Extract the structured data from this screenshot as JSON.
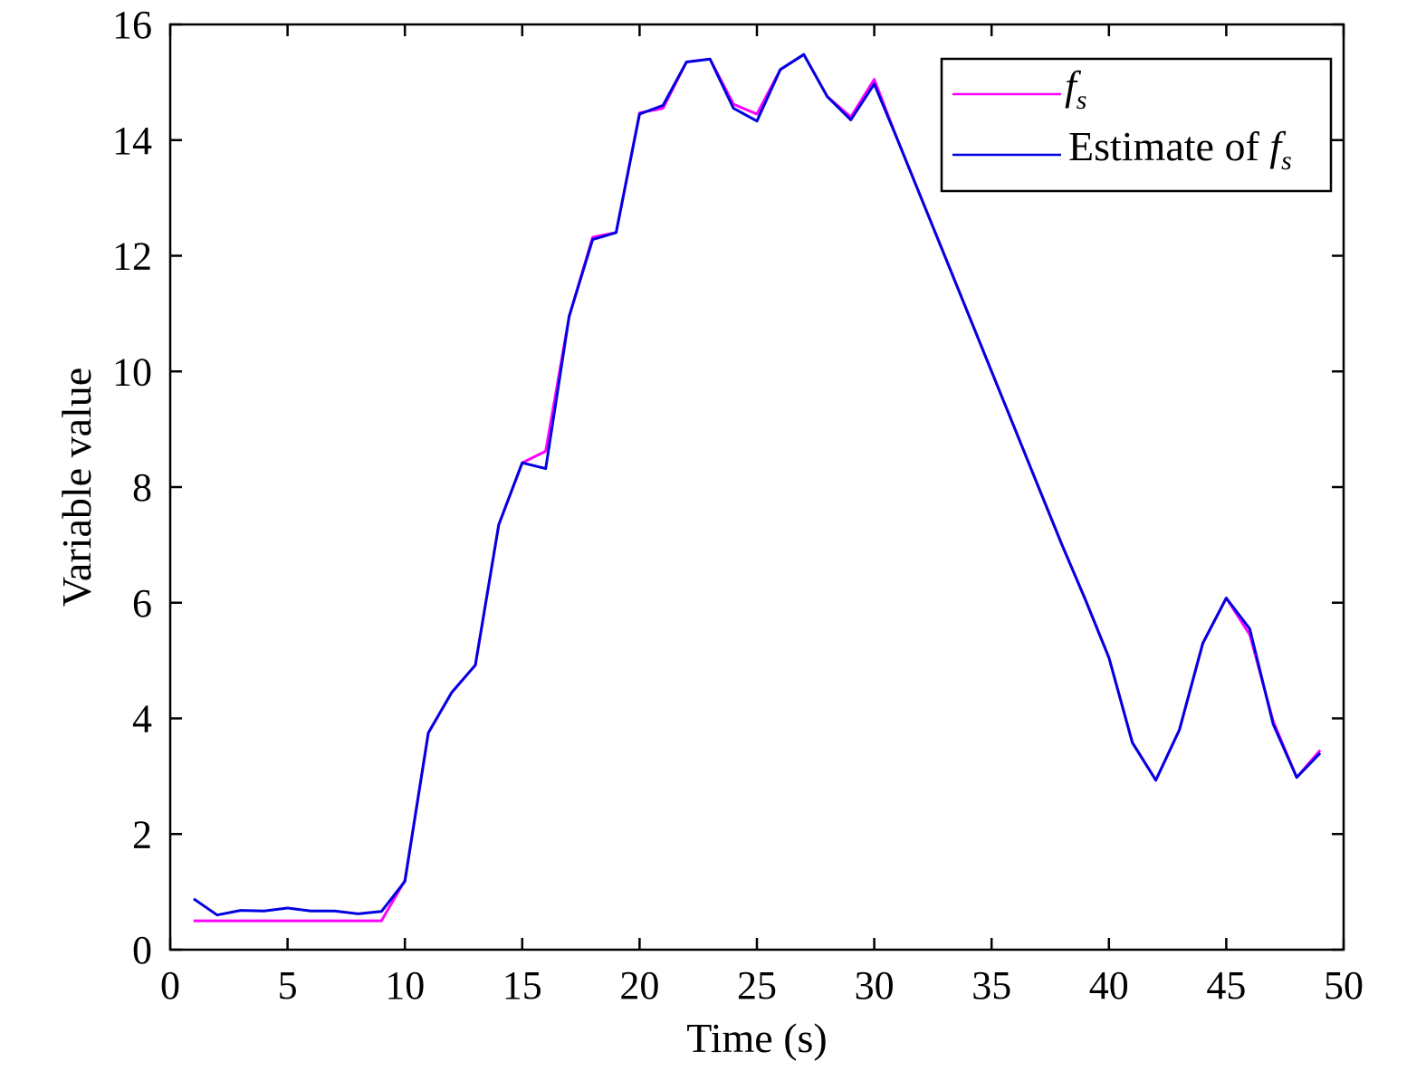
{
  "chart_data": {
    "type": "line",
    "title": "",
    "xlabel": "Time (s)",
    "ylabel": "Variable value",
    "xlim": [
      0,
      50
    ],
    "ylim": [
      0,
      16
    ],
    "xticks": [
      0,
      5,
      10,
      15,
      20,
      25,
      30,
      35,
      40,
      45,
      50
    ],
    "yticks": [
      0,
      2,
      4,
      6,
      8,
      10,
      12,
      14,
      16
    ],
    "grid": false,
    "legend_position": "upper right",
    "x": [
      1,
      2,
      3,
      4,
      5,
      6,
      7,
      8,
      9,
      10,
      11,
      12,
      13,
      14,
      15,
      16,
      17,
      18,
      19,
      20,
      21,
      22,
      23,
      24,
      25,
      26,
      27,
      28,
      29,
      30,
      31,
      32,
      33,
      34,
      35,
      36,
      37,
      38,
      39,
      40,
      41,
      42,
      43,
      44,
      45,
      46,
      47,
      48,
      49
    ],
    "series": [
      {
        "name": "f_s",
        "label_main": "f",
        "label_sub": "s",
        "color": "#ff00ff",
        "values": [
          0.5,
          0.5,
          0.5,
          0.5,
          0.5,
          0.5,
          0.5,
          0.5,
          0.5,
          1.2,
          3.75,
          4.45,
          4.92,
          7.35,
          8.42,
          8.62,
          10.95,
          12.32,
          12.4,
          14.47,
          14.55,
          15.35,
          15.4,
          14.62,
          14.45,
          15.22,
          15.48,
          14.75,
          14.4,
          15.05,
          14.0,
          13.0,
          12.0,
          11.0,
          10.0,
          9.0,
          8.0,
          7.0,
          6.05,
          5.05,
          3.58,
          2.93,
          3.8,
          5.3,
          6.08,
          5.45,
          3.95,
          2.98,
          3.45
        ]
      },
      {
        "name": "Estimate of f_s",
        "label_main": "Estimate of ",
        "label_italic": "f",
        "label_sub": "s",
        "color": "#0000e0",
        "values": [
          0.88,
          0.6,
          0.68,
          0.67,
          0.72,
          0.67,
          0.67,
          0.62,
          0.66,
          1.18,
          3.75,
          4.45,
          4.92,
          7.35,
          8.42,
          8.32,
          10.95,
          12.28,
          12.4,
          14.45,
          14.6,
          15.35,
          15.4,
          14.55,
          14.33,
          15.22,
          15.48,
          14.75,
          14.35,
          14.97,
          14.0,
          13.0,
          12.0,
          11.0,
          10.0,
          9.0,
          8.0,
          7.0,
          6.05,
          5.05,
          3.58,
          2.93,
          3.8,
          5.3,
          6.08,
          5.55,
          3.9,
          2.98,
          3.4
        ]
      }
    ]
  }
}
